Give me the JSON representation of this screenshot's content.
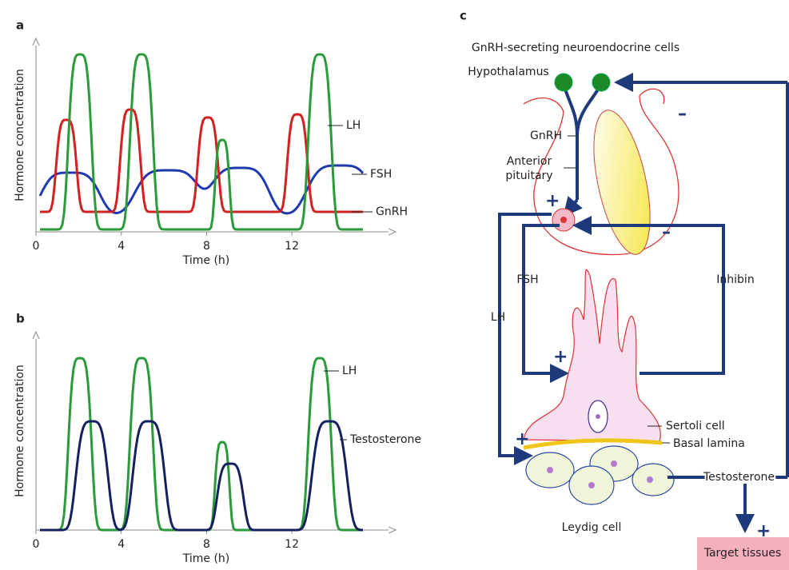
{
  "panels": {
    "a": {
      "label": "a",
      "y_label": "Hormone concentration",
      "x_label": "Time (h)",
      "x_ticks": [
        "0",
        "4",
        "8",
        "12"
      ],
      "curve_labels": [
        "LH",
        "FSH",
        "GnRH"
      ]
    },
    "b": {
      "label": "b",
      "y_label": "Hormone concentration",
      "x_label": "Time (h)",
      "x_ticks": [
        "0",
        "4",
        "8",
        "12"
      ],
      "curve_labels": [
        "LH",
        "Testosterone"
      ]
    },
    "c": {
      "label": "c",
      "labels": [
        "GnRH-secreting neuroendocrine cells",
        "Hypothalamus",
        "GnRH",
        "Anterior",
        "pituitary",
        "FSH",
        "LH",
        "Inhibin",
        "Sertoli cell",
        "Basal lamina",
        "Testosterone",
        "Leydig cell",
        "Target tissues"
      ],
      "signs": [
        "–",
        "+",
        "–",
        "+",
        "+",
        "+"
      ]
    }
  }
}
